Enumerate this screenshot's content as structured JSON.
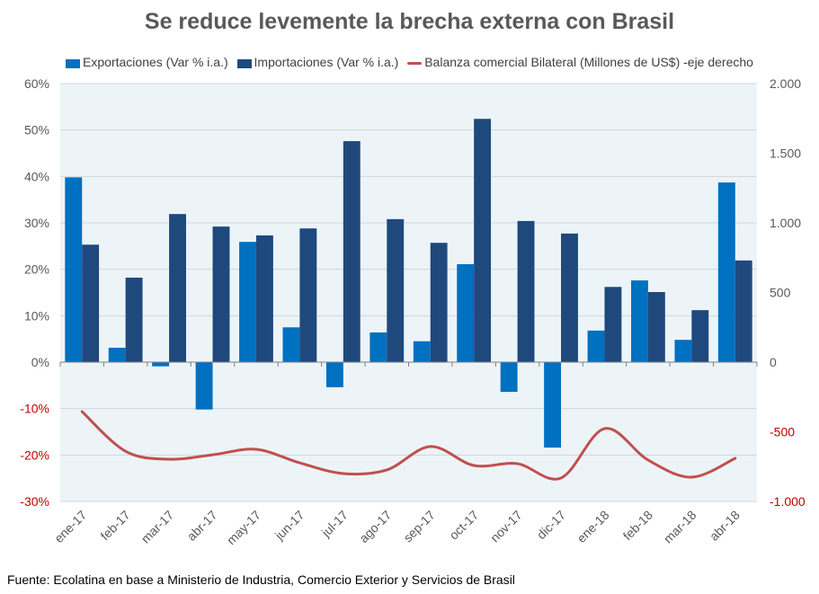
{
  "chart_data": {
    "type": "bar",
    "title": "Se reduce levemente la brecha externa con Brasil",
    "categories": [
      "ene-17",
      "feb-17",
      "mar-17",
      "abr-17",
      "may-17",
      "jun-17",
      "jul-17",
      "ago-17",
      "sep-17",
      "oct-17",
      "nov-17",
      "dic-17",
      "ene-18",
      "feb-18",
      "mar-18",
      "abr-18"
    ],
    "series": [
      {
        "name": "Exportaciones (Var % i.a.)",
        "type": "bar",
        "axis": "left",
        "color": "#0070C0",
        "values": [
          39.8,
          3.1,
          -0.9,
          -10.2,
          25.9,
          7.5,
          -5.4,
          6.4,
          4.5,
          21.1,
          -6.4,
          -18.4,
          6.8,
          17.6,
          4.8,
          38.7
        ]
      },
      {
        "name": "Importaciones (Var % i.a.)",
        "type": "bar",
        "axis": "left",
        "color": "#1F497D",
        "values": [
          25.3,
          18.2,
          31.9,
          29.2,
          27.3,
          28.8,
          47.6,
          30.8,
          25.7,
          52.4,
          30.4,
          27.7,
          16.2,
          15.1,
          11.2,
          21.9
        ]
      },
      {
        "name": "Balanza comercial Bilateral (Millones de US$) -eje derecho",
        "type": "line",
        "axis": "right",
        "color": "#C0504D",
        "values": [
          -355,
          -640,
          -697,
          -665,
          -626,
          -723,
          -800,
          -774,
          -606,
          -742,
          -729,
          -832,
          -477,
          -703,
          -826,
          -690
        ]
      }
    ],
    "left_axis": {
      "ylim": [
        -30,
        60
      ],
      "ticks": [
        "60%",
        "50%",
        "40%",
        "30%",
        "20%",
        "10%",
        "0%",
        "-10%",
        "-20%",
        "-30%"
      ],
      "tick_values": [
        60,
        50,
        40,
        30,
        20,
        10,
        0,
        -10,
        -20,
        -30
      ]
    },
    "right_axis": {
      "ylim": [
        -1000,
        2000
      ],
      "ticks": [
        "2.000",
        "1.500",
        "1.000",
        "500",
        "0",
        "-500",
        "-1.000"
      ],
      "tick_values": [
        2000,
        1500,
        1000,
        500,
        0,
        -500,
        -1000
      ]
    },
    "xlabel": "",
    "ylabel": "",
    "grid": true,
    "legend_position": "top",
    "negative_tick_color": "#C00000",
    "tick_color": "#595959",
    "plot_background": "#EDF4F8"
  },
  "source": "Fuente: Ecolatina en base a Ministerio de Industria, Comercio Exterior y Servicios de Brasil"
}
